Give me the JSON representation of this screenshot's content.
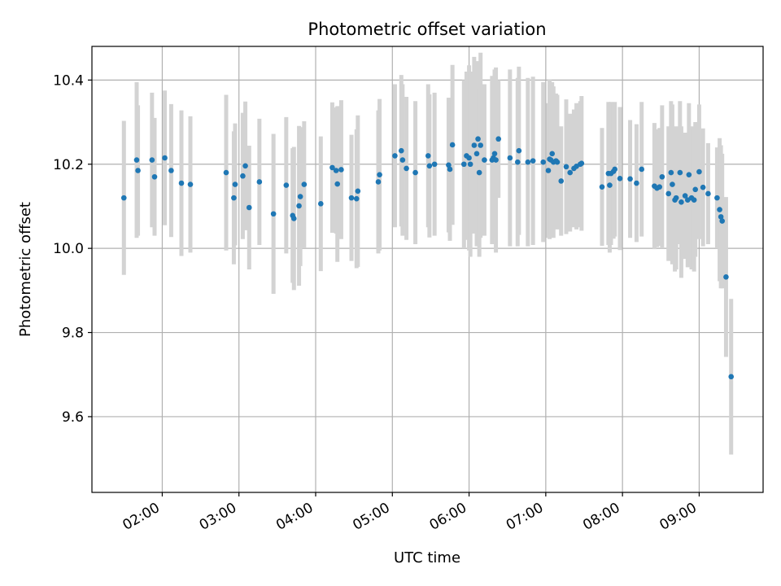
{
  "chart_data": {
    "type": "scatter",
    "title": "Photometric offset variation",
    "xlabel": "UTC time",
    "ylabel": "Photometric offset",
    "x_ticks": [
      "02:00",
      "03:00",
      "04:00",
      "05:00",
      "06:00",
      "07:00",
      "08:00",
      "09:00"
    ],
    "y_ticks": [
      "9.6",
      "9.8",
      "10.0",
      "10.2",
      "10.4"
    ],
    "xlim": [
      "01:05",
      "09:50"
    ],
    "ylim": [
      9.42,
      10.48
    ],
    "grid": true,
    "colors": {
      "point": "#1f77b4",
      "errorbar": "#d3d3d3",
      "grid": "#b0b0b0"
    },
    "series": [
      {
        "x": [
          "01:30",
          "01:40",
          "01:41",
          "01:52",
          "01:54",
          "02:02",
          "02:07",
          "02:15",
          "02:22",
          "02:50",
          "02:56",
          "02:57",
          "03:03",
          "03:05",
          "03:08",
          "03:16",
          "03:27",
          "03:37",
          "03:42",
          "03:43",
          "03:47",
          "03:48",
          "03:51",
          "04:04",
          "04:13",
          "04:16",
          "04:17",
          "04:20",
          "04:28",
          "04:32",
          "04:33",
          "04:49",
          "04:50",
          "05:02",
          "05:07",
          "05:08",
          "05:11",
          "05:18",
          "05:28",
          "05:29",
          "05:33",
          "05:44",
          "05:45",
          "05:47",
          "05:56",
          "05:58",
          "06:00",
          "06:01",
          "06:04",
          "06:06",
          "06:07",
          "06:08",
          "06:09",
          "06:12",
          "06:18",
          "06:19",
          "06:20",
          "06:21",
          "06:23",
          "06:32",
          "06:38",
          "06:39",
          "06:46",
          "06:50",
          "06:58",
          "07:02",
          "07:03",
          "07:04",
          "07:05",
          "07:06",
          "07:08",
          "07:09",
          "07:12",
          "07:16",
          "07:19",
          "07:22",
          "07:24",
          "07:27",
          "07:28",
          "07:44",
          "07:49",
          "07:50",
          "07:51",
          "07:53",
          "07:54",
          "07:58",
          "08:06",
          "08:11",
          "08:15",
          "08:25",
          "08:27",
          "08:29",
          "08:31",
          "08:36",
          "08:38",
          "08:39",
          "08:41",
          "08:42",
          "08:45",
          "08:46",
          "08:49",
          "08:51",
          "08:52",
          "08:54",
          "08:56",
          "08:57",
          "09:00",
          "09:03",
          "09:07",
          "09:14",
          "09:16",
          "09:17",
          "09:18",
          "09:21",
          "09:25"
        ],
        "y": [
          10.12,
          10.21,
          10.185,
          10.21,
          10.17,
          10.215,
          10.185,
          10.155,
          10.152,
          10.18,
          10.12,
          10.152,
          10.172,
          10.196,
          10.097,
          10.158,
          10.082,
          10.15,
          10.078,
          10.071,
          10.101,
          10.123,
          10.152,
          10.106,
          10.192,
          10.185,
          10.153,
          10.187,
          10.12,
          10.118,
          10.136,
          10.158,
          10.175,
          10.22,
          10.232,
          10.21,
          10.19,
          10.18,
          10.22,
          10.196,
          10.2,
          10.198,
          10.188,
          10.246,
          10.2,
          10.22,
          10.215,
          10.2,
          10.245,
          10.225,
          10.26,
          10.18,
          10.245,
          10.21,
          10.21,
          10.215,
          10.225,
          10.21,
          10.26,
          10.215,
          10.205,
          10.232,
          10.205,
          10.208,
          10.205,
          10.185,
          10.212,
          10.21,
          10.225,
          10.205,
          10.208,
          10.205,
          10.16,
          10.194,
          10.18,
          10.19,
          10.195,
          10.2,
          10.202,
          10.146,
          10.178,
          10.15,
          10.178,
          10.183,
          10.188,
          10.166,
          10.165,
          10.155,
          10.188,
          10.148,
          10.143,
          10.146,
          10.17,
          10.13,
          10.18,
          10.152,
          10.115,
          10.12,
          10.18,
          10.11,
          10.125,
          10.115,
          10.175,
          10.12,
          10.115,
          10.14,
          10.182,
          10.145,
          10.13,
          10.12,
          10.092,
          10.075,
          10.065,
          9.932,
          9.695
        ],
        "yerr": [
          0.183,
          0.185,
          0.155,
          0.16,
          0.14,
          0.16,
          0.158,
          0.173,
          0.162,
          0.185,
          0.158,
          0.145,
          0.15,
          0.153,
          0.147,
          0.15,
          0.19,
          0.162,
          0.16,
          0.17,
          0.19,
          0.165,
          0.15,
          0.16,
          0.155,
          0.15,
          0.185,
          0.165,
          0.15,
          0.165,
          0.18,
          0.17,
          0.18,
          0.17,
          0.18,
          0.18,
          0.17,
          0.17,
          0.17,
          0.17,
          0.17,
          0.16,
          0.17,
          0.19,
          0.2,
          0.2,
          0.22,
          0.22,
          0.21,
          0.22,
          0.17,
          0.2,
          0.22,
          0.18,
          0.2,
          0.17,
          0.2,
          0.22,
          0.14,
          0.21,
          0.2,
          0.2,
          0.2,
          0.2,
          0.19,
          0.16,
          0.19,
          0.18,
          0.17,
          0.18,
          0.16,
          0.16,
          0.13,
          0.16,
          0.14,
          0.14,
          0.15,
          0.15,
          0.16,
          0.14,
          0.17,
          0.16,
          0.17,
          0.16,
          0.16,
          0.17,
          0.14,
          0.14,
          0.16,
          0.15,
          0.14,
          0.14,
          0.17,
          0.16,
          0.17,
          0.19,
          0.17,
          0.17,
          0.17,
          0.18,
          0.15,
          0.16,
          0.17,
          0.17,
          0.17,
          0.16,
          0.16,
          0.14,
          0.12,
          0.12,
          0.17,
          0.17,
          0.16,
          0.19,
          0.185
        ]
      }
    ]
  }
}
